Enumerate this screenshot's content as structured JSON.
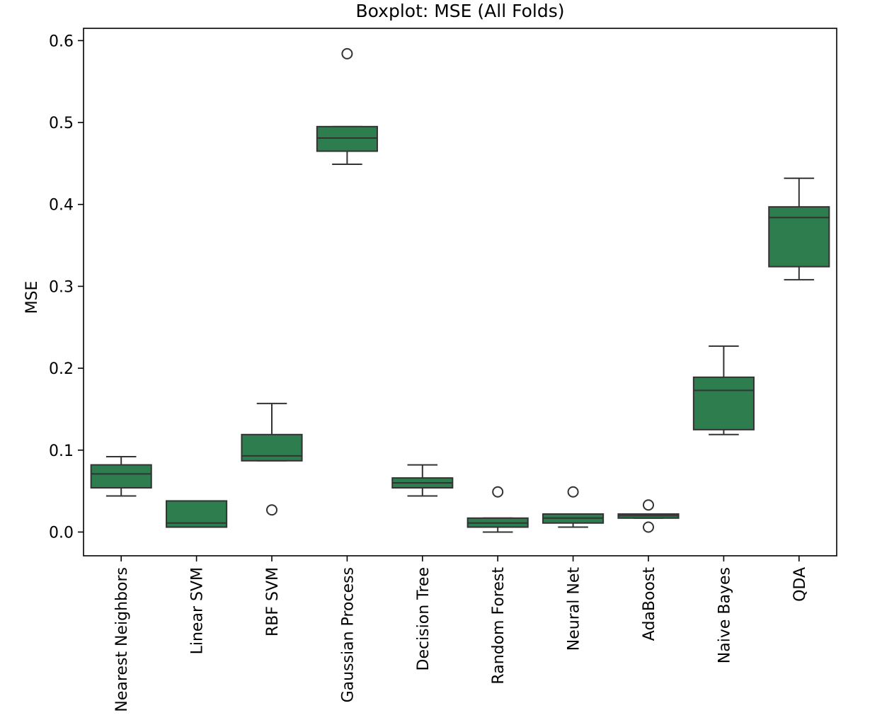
{
  "chart_data": {
    "type": "boxplot",
    "title": "Boxplot: MSE (All Folds)",
    "xlabel": "",
    "ylabel": "MSE",
    "ylim": [
      -0.029,
      0.615
    ],
    "yticks": [
      0.0,
      0.1,
      0.2,
      0.3,
      0.4,
      0.5,
      0.6
    ],
    "ytick_labels": [
      "0.0",
      "0.1",
      "0.2",
      "0.3",
      "0.4",
      "0.5",
      "0.6"
    ],
    "grid": false,
    "legend": "none",
    "box_color": "#2e7d4f",
    "line_color": "#333333",
    "categories": [
      "Nearest Neighbors",
      "Linear SVM",
      "RBF SVM",
      "Gaussian Process",
      "Decision Tree",
      "Random Forest",
      "Neural Net",
      "AdaBoost",
      "Naive Bayes",
      "QDA"
    ],
    "boxes": [
      {
        "whisker_low": 0.044,
        "q1": 0.054,
        "median": 0.071,
        "q3": 0.082,
        "whisker_high": 0.092,
        "outliers": []
      },
      {
        "whisker_low": 0.006,
        "q1": 0.006,
        "median": 0.011,
        "q3": 0.038,
        "whisker_high": 0.038,
        "outliers": []
      },
      {
        "whisker_low": 0.087,
        "q1": 0.087,
        "median": 0.093,
        "q3": 0.119,
        "whisker_high": 0.157,
        "outliers": [
          0.027
        ]
      },
      {
        "whisker_low": 0.449,
        "q1": 0.465,
        "median": 0.481,
        "q3": 0.495,
        "whisker_high": 0.495,
        "outliers": [
          0.584
        ]
      },
      {
        "whisker_low": 0.044,
        "q1": 0.054,
        "median": 0.06,
        "q3": 0.066,
        "whisker_high": 0.082,
        "outliers": []
      },
      {
        "whisker_low": 0.0,
        "q1": 0.006,
        "median": 0.011,
        "q3": 0.017,
        "whisker_high": 0.017,
        "outliers": [
          0.049
        ]
      },
      {
        "whisker_low": 0.006,
        "q1": 0.011,
        "median": 0.017,
        "q3": 0.022,
        "whisker_high": 0.022,
        "outliers": [
          0.049
        ]
      },
      {
        "whisker_low": 0.017,
        "q1": 0.017,
        "median": 0.02,
        "q3": 0.022,
        "whisker_high": 0.022,
        "outliers": [
          0.033,
          0.006
        ]
      },
      {
        "whisker_low": 0.119,
        "q1": 0.125,
        "median": 0.173,
        "q3": 0.189,
        "whisker_high": 0.227,
        "outliers": []
      },
      {
        "whisker_low": 0.308,
        "q1": 0.324,
        "median": 0.384,
        "q3": 0.397,
        "whisker_high": 0.432,
        "outliers": []
      }
    ]
  }
}
